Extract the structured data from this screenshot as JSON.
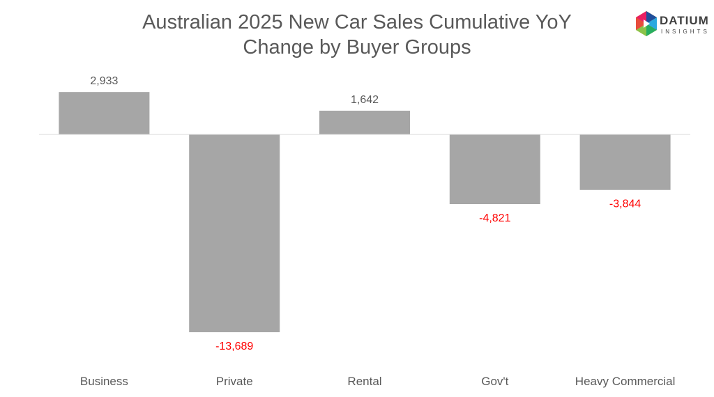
{
  "chart_data": {
    "type": "bar",
    "title": "Australian 2025 New Car Sales Cumulative YoY Change by Buyer Groups",
    "title_lines": [
      "Australian 2025 New Car Sales Cumulative YoY",
      "Change by Buyer Groups"
    ],
    "categories": [
      "Business",
      "Private",
      "Rental",
      "Gov't",
      "Heavy Commercial"
    ],
    "values": [
      2933,
      -13689,
      1642,
      -4821,
      -3844
    ],
    "data_labels": [
      "2,933",
      "-13,689",
      "1,642",
      "-4,821",
      "-3,844"
    ],
    "xlabel": "",
    "ylabel": "",
    "ylim": [
      -14000,
      3000
    ],
    "grid": false,
    "legend": "none",
    "colors": {
      "bar": "#a6a6a6",
      "positive_label": "#595959",
      "negative_label": "#ff0000",
      "axis": "#d9d9d9"
    }
  },
  "logo": {
    "name": "DATIUM",
    "tagline": "INSIGHTS"
  }
}
